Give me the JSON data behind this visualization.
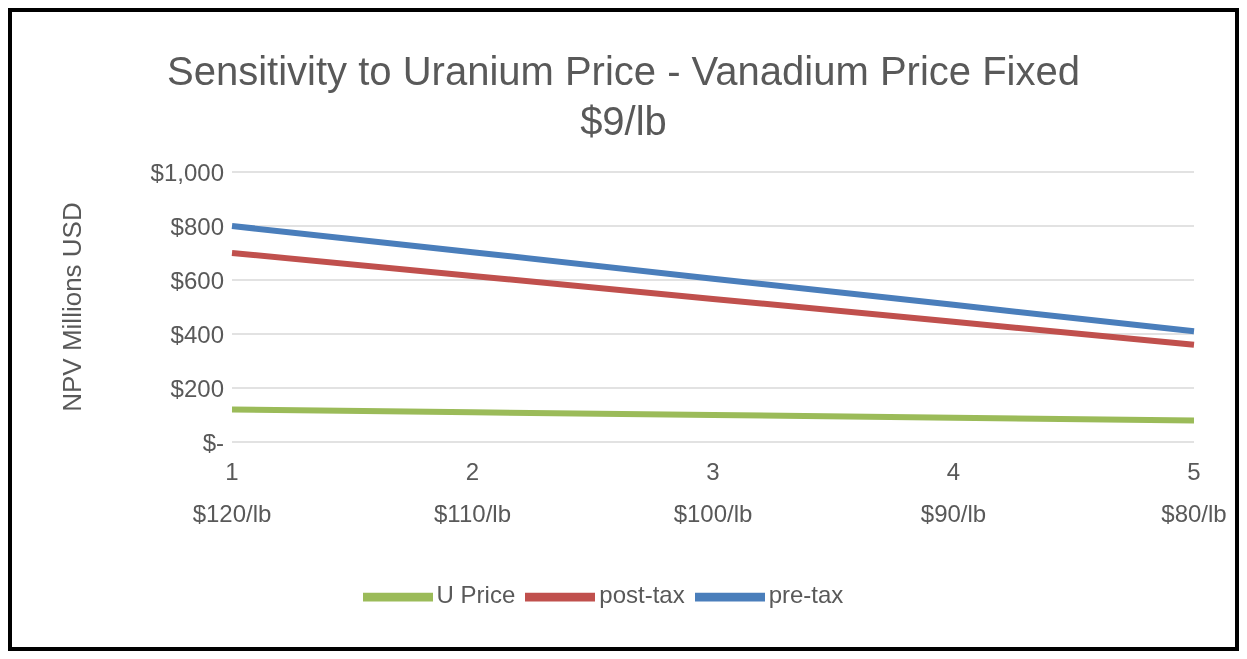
{
  "chart_data": {
    "type": "line",
    "title": "Sensitivity to Uranium Price - Vanadium Price Fixed $9/lb",
    "ylabel": "NPV Millions USD",
    "categories": [
      "1\n$120/lb",
      "2\n$110/lb",
      "3\n$100/lb",
      "4\n$90/lb",
      "5\n$80/lb"
    ],
    "series": [
      {
        "name": "pre-tax",
        "color": "#4a7ebb",
        "values": [
          800,
          703,
          605,
          508,
          410
        ]
      },
      {
        "name": "post-tax",
        "color": "#c0504d",
        "values": [
          700,
          615,
          530,
          445,
          360
        ]
      },
      {
        "name": "U Price",
        "color": "#9bbb59",
        "values": [
          120,
          110,
          100,
          90,
          80
        ]
      }
    ],
    "ylim": [
      0,
      1000
    ],
    "yticks": [
      {
        "value": 0,
        "label": "$-"
      },
      {
        "value": 200,
        "label": "$200"
      },
      {
        "value": 400,
        "label": "$400"
      },
      {
        "value": 600,
        "label": "$600"
      },
      {
        "value": 800,
        "label": "$800"
      },
      {
        "value": 1000,
        "label": "$1,000"
      }
    ],
    "grid": "y",
    "legend": "bottom",
    "marker": "none",
    "line_style": "solid"
  }
}
